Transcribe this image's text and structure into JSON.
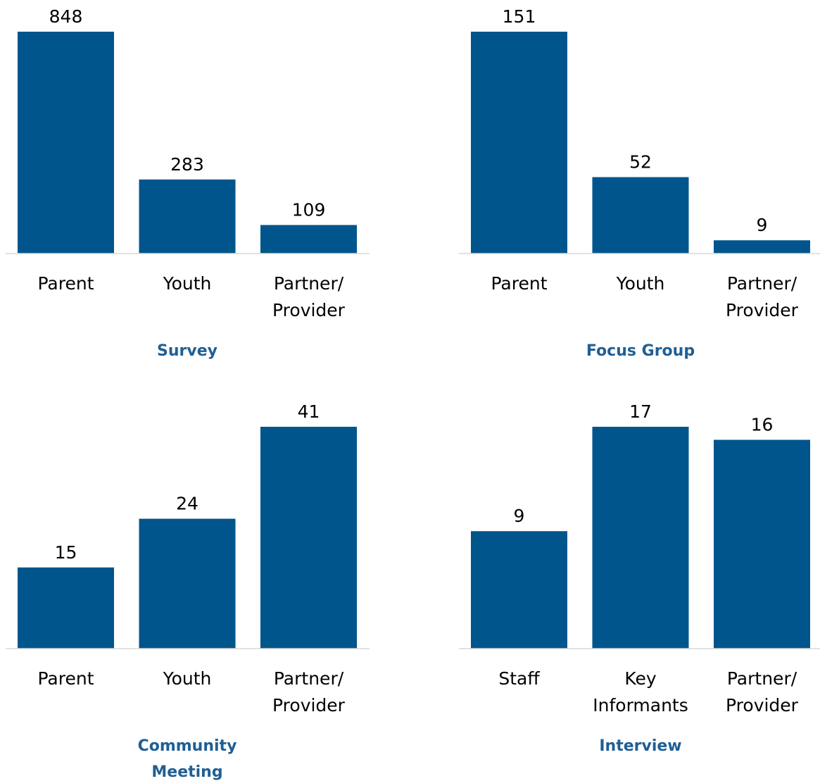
{
  "chart_data": [
    {
      "type": "bar",
      "title": "Survey",
      "categories": [
        "Parent",
        "Youth",
        "Partner/\nProvider"
      ],
      "values": [
        848,
        283,
        109
      ],
      "color": "#00558c"
    },
    {
      "type": "bar",
      "title": "Focus Group",
      "categories": [
        "Parent",
        "Youth",
        "Partner/\nProvider"
      ],
      "values": [
        151,
        52,
        9
      ],
      "color": "#00558c"
    },
    {
      "type": "bar",
      "title": "Community\nMeeting",
      "categories": [
        "Parent",
        "Youth",
        "Partner/\nProvider"
      ],
      "values": [
        15,
        24,
        41
      ],
      "color": "#00558c"
    },
    {
      "type": "bar",
      "title": "Interview",
      "categories": [
        "Staff",
        "Key\nInformants",
        "Partner/\nProvider"
      ],
      "values": [
        9,
        17,
        16
      ],
      "color": "#00558c"
    }
  ]
}
